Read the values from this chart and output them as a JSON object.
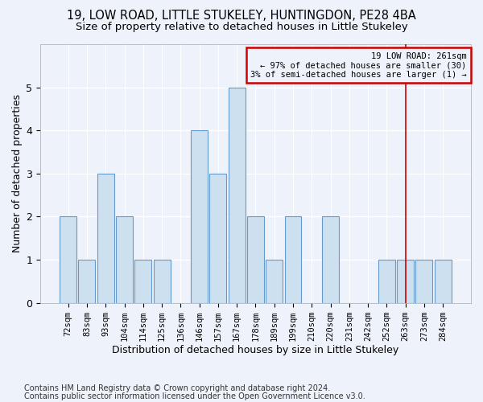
{
  "title1": "19, LOW ROAD, LITTLE STUKELEY, HUNTINGDON, PE28 4BA",
  "title2": "Size of property relative to detached houses in Little Stukeley",
  "xlabel": "Distribution of detached houses by size in Little Stukeley",
  "ylabel": "Number of detached properties",
  "footnote1": "Contains HM Land Registry data © Crown copyright and database right 2024.",
  "footnote2": "Contains public sector information licensed under the Open Government Licence v3.0.",
  "categories": [
    "72sqm",
    "83sqm",
    "93sqm",
    "104sqm",
    "114sqm",
    "125sqm",
    "136sqm",
    "146sqm",
    "157sqm",
    "167sqm",
    "178sqm",
    "189sqm",
    "199sqm",
    "210sqm",
    "220sqm",
    "231sqm",
    "242sqm",
    "252sqm",
    "263sqm",
    "273sqm",
    "284sqm"
  ],
  "values": [
    2,
    1,
    3,
    2,
    1,
    1,
    0,
    4,
    3,
    5,
    2,
    1,
    2,
    0,
    2,
    0,
    0,
    1,
    1,
    1,
    1
  ],
  "bar_color": "#cce0f0",
  "bar_edge_color": "#6699cc",
  "annotation_box_text": "19 LOW ROAD: 261sqm\n← 97% of detached houses are smaller (30)\n3% of semi-detached houses are larger (1) →",
  "annotation_box_color": "#cc0000",
  "vline_x_index": 18,
  "ylim": [
    0,
    6
  ],
  "yticks": [
    0,
    1,
    2,
    3,
    4,
    5,
    6
  ],
  "background_color": "#eef2fa",
  "grid_color": "#ffffff",
  "title1_fontsize": 10.5,
  "title2_fontsize": 9.5,
  "axis_label_fontsize": 9,
  "tick_fontsize": 7.5,
  "footnote_fontsize": 7.0
}
